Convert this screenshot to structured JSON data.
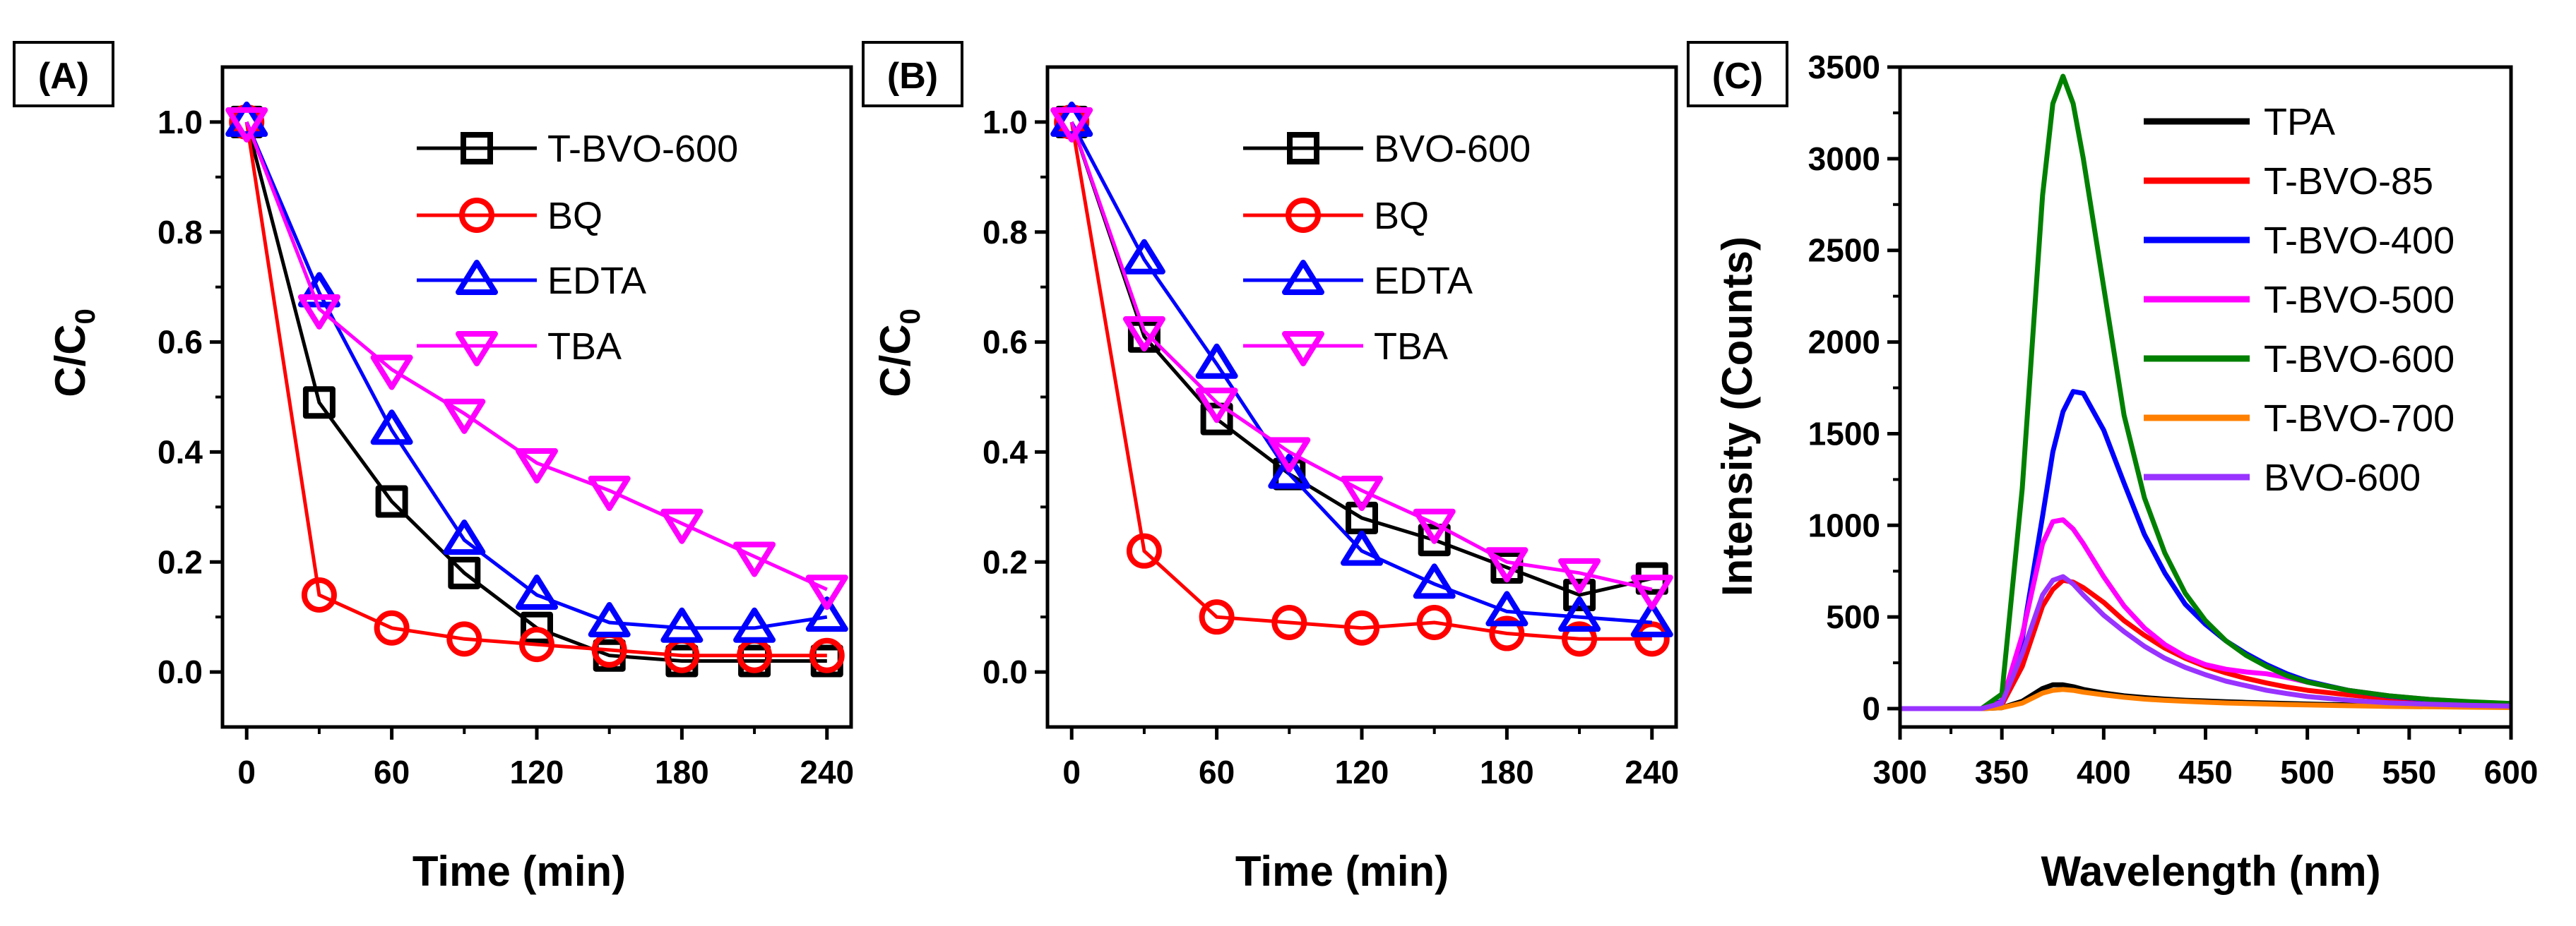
{
  "chart_data": [
    {
      "type": "line",
      "panel_label": "(A)",
      "xlabel": "Time (min)",
      "ylabel": "C/C",
      "ylabel_sub": "0",
      "xlim": [
        -10,
        250
      ],
      "ylim": [
        -0.1,
        1.1
      ],
      "x": [
        0,
        30,
        60,
        90,
        120,
        150,
        180,
        210,
        240
      ],
      "xticks": [
        0,
        60,
        120,
        180,
        240
      ],
      "yticks": [
        0.0,
        0.2,
        0.4,
        0.6,
        0.8,
        1.0
      ],
      "series": [
        {
          "name": "T-BVO-600",
          "color": "#000000",
          "marker": "square",
          "values": [
            1.0,
            0.49,
            0.31,
            0.18,
            0.08,
            0.03,
            0.02,
            0.02,
            0.02
          ]
        },
        {
          "name": "BQ",
          "color": "#ff0000",
          "marker": "circle",
          "values": [
            1.0,
            0.14,
            0.08,
            0.06,
            0.05,
            0.04,
            0.03,
            0.03,
            0.03
          ]
        },
        {
          "name": "EDTA",
          "color": "#0000ff",
          "marker": "triangle-up",
          "values": [
            1.0,
            0.69,
            0.44,
            0.24,
            0.14,
            0.09,
            0.08,
            0.08,
            0.1
          ]
        },
        {
          "name": "TBA",
          "color": "#ff00ff",
          "marker": "triangle-down",
          "values": [
            1.0,
            0.66,
            0.55,
            0.47,
            0.38,
            0.33,
            0.27,
            0.21,
            0.15
          ]
        }
      ]
    },
    {
      "type": "line",
      "panel_label": "(B)",
      "xlabel": "Time (min)",
      "ylabel": "C/C",
      "ylabel_sub": "0",
      "xlim": [
        -10,
        250
      ],
      "ylim": [
        -0.1,
        1.1
      ],
      "x": [
        0,
        30,
        60,
        90,
        120,
        150,
        180,
        210,
        240
      ],
      "xticks": [
        0,
        60,
        120,
        180,
        240
      ],
      "yticks": [
        0.0,
        0.2,
        0.4,
        0.6,
        0.8,
        1.0
      ],
      "series": [
        {
          "name": "BVO-600",
          "color": "#000000",
          "marker": "square",
          "values": [
            1.0,
            0.61,
            0.46,
            0.36,
            0.28,
            0.24,
            0.19,
            0.14,
            0.17
          ]
        },
        {
          "name": "BQ",
          "color": "#ff0000",
          "marker": "circle",
          "values": [
            1.0,
            0.22,
            0.1,
            0.09,
            0.08,
            0.09,
            0.07,
            0.06,
            0.06
          ]
        },
        {
          "name": "EDTA",
          "color": "#0000ff",
          "marker": "triangle-up",
          "values": [
            1.0,
            0.75,
            0.56,
            0.36,
            0.22,
            0.16,
            0.11,
            0.1,
            0.09
          ]
        },
        {
          "name": "TBA",
          "color": "#ff00ff",
          "marker": "triangle-down",
          "values": [
            1.0,
            0.62,
            0.49,
            0.4,
            0.33,
            0.27,
            0.2,
            0.18,
            0.15
          ]
        }
      ]
    },
    {
      "type": "line",
      "panel_label": "(C)",
      "xlabel": "Wavelength (nm)",
      "ylabel": "Intensity (Counts)",
      "xlim": [
        300,
        600
      ],
      "ylim": [
        -100,
        3500
      ],
      "xticks": [
        300,
        350,
        400,
        450,
        500,
        550,
        600
      ],
      "yticks": [
        0,
        500,
        1000,
        1500,
        2000,
        2500,
        3000,
        3500
      ],
      "x": [
        300,
        340,
        350,
        360,
        370,
        375,
        380,
        385,
        390,
        400,
        410,
        420,
        430,
        440,
        450,
        460,
        470,
        480,
        490,
        500,
        520,
        540,
        560,
        580,
        600
      ],
      "series": [
        {
          "name": "TPA",
          "color": "#000000",
          "values": [
            0,
            0,
            5,
            40,
            110,
            130,
            130,
            120,
            105,
            85,
            70,
            60,
            52,
            46,
            42,
            38,
            34,
            31,
            28,
            25,
            20,
            16,
            12,
            10,
            8
          ]
        },
        {
          "name": "T-BVO-85",
          "color": "#ff0000",
          "values": [
            0,
            0,
            20,
            230,
            560,
            650,
            700,
            690,
            660,
            580,
            480,
            400,
            330,
            275,
            230,
            195,
            165,
            140,
            118,
            100,
            75,
            55,
            40,
            30,
            22
          ]
        },
        {
          "name": "T-BVO-400",
          "color": "#0000ff",
          "values": [
            0,
            0,
            40,
            380,
            1050,
            1400,
            1620,
            1730,
            1720,
            1520,
            1230,
            950,
            740,
            570,
            460,
            370,
            300,
            240,
            190,
            150,
            100,
            68,
            48,
            34,
            25
          ]
        },
        {
          "name": "T-BVO-500",
          "color": "#ff00ff",
          "values": [
            0,
            0,
            35,
            400,
            900,
            1020,
            1030,
            980,
            900,
            720,
            560,
            440,
            350,
            285,
            240,
            215,
            200,
            190,
            170,
            145,
            100,
            70,
            50,
            36,
            28
          ]
        },
        {
          "name": "T-BVO-600",
          "color": "#008000",
          "values": [
            0,
            0,
            80,
            1200,
            2800,
            3300,
            3450,
            3300,
            3000,
            2300,
            1600,
            1150,
            850,
            630,
            480,
            370,
            290,
            230,
            180,
            145,
            100,
            70,
            50,
            38,
            28
          ]
        },
        {
          "name": "T-BVO-700",
          "color": "#ff8000",
          "values": [
            0,
            0,
            5,
            30,
            85,
            100,
            105,
            100,
            90,
            75,
            62,
            52,
            45,
            40,
            35,
            31,
            28,
            25,
            22,
            20,
            16,
            12,
            10,
            8,
            6
          ]
        },
        {
          "name": "BVO-600",
          "color": "#9933ff",
          "values": [
            0,
            0,
            30,
            300,
            620,
            700,
            720,
            680,
            620,
            510,
            420,
            340,
            275,
            225,
            185,
            150,
            125,
            100,
            82,
            66,
            46,
            32,
            24,
            18,
            14
          ]
        }
      ]
    }
  ]
}
